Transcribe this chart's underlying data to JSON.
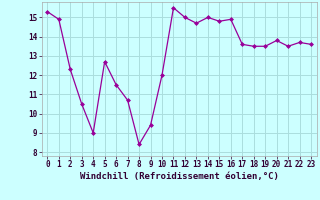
{
  "x": [
    0,
    1,
    2,
    3,
    4,
    5,
    6,
    7,
    8,
    9,
    10,
    11,
    12,
    13,
    14,
    15,
    16,
    17,
    18,
    19,
    20,
    21,
    22,
    23
  ],
  "y": [
    15.3,
    14.9,
    12.3,
    10.5,
    9.0,
    12.7,
    11.5,
    10.7,
    8.4,
    9.4,
    12.0,
    15.5,
    15.0,
    14.7,
    15.0,
    14.8,
    14.9,
    13.6,
    13.5,
    13.5,
    13.8,
    13.5,
    13.7,
    13.6
  ],
  "line_color": "#990099",
  "marker": "D",
  "marker_size": 2,
  "bg_color": "#ccffff",
  "grid_color": "#aadddd",
  "xlabel": "Windchill (Refroidissement éolien,°C)",
  "xlim": [
    -0.5,
    23.5
  ],
  "ylim": [
    7.8,
    15.8
  ],
  "yticks": [
    8,
    9,
    10,
    11,
    12,
    13,
    14,
    15
  ],
  "xticks": [
    0,
    1,
    2,
    3,
    4,
    5,
    6,
    7,
    8,
    9,
    10,
    11,
    12,
    13,
    14,
    15,
    16,
    17,
    18,
    19,
    20,
    21,
    22,
    23
  ],
  "tick_fontsize": 5.5,
  "xlabel_fontsize": 6.5
}
